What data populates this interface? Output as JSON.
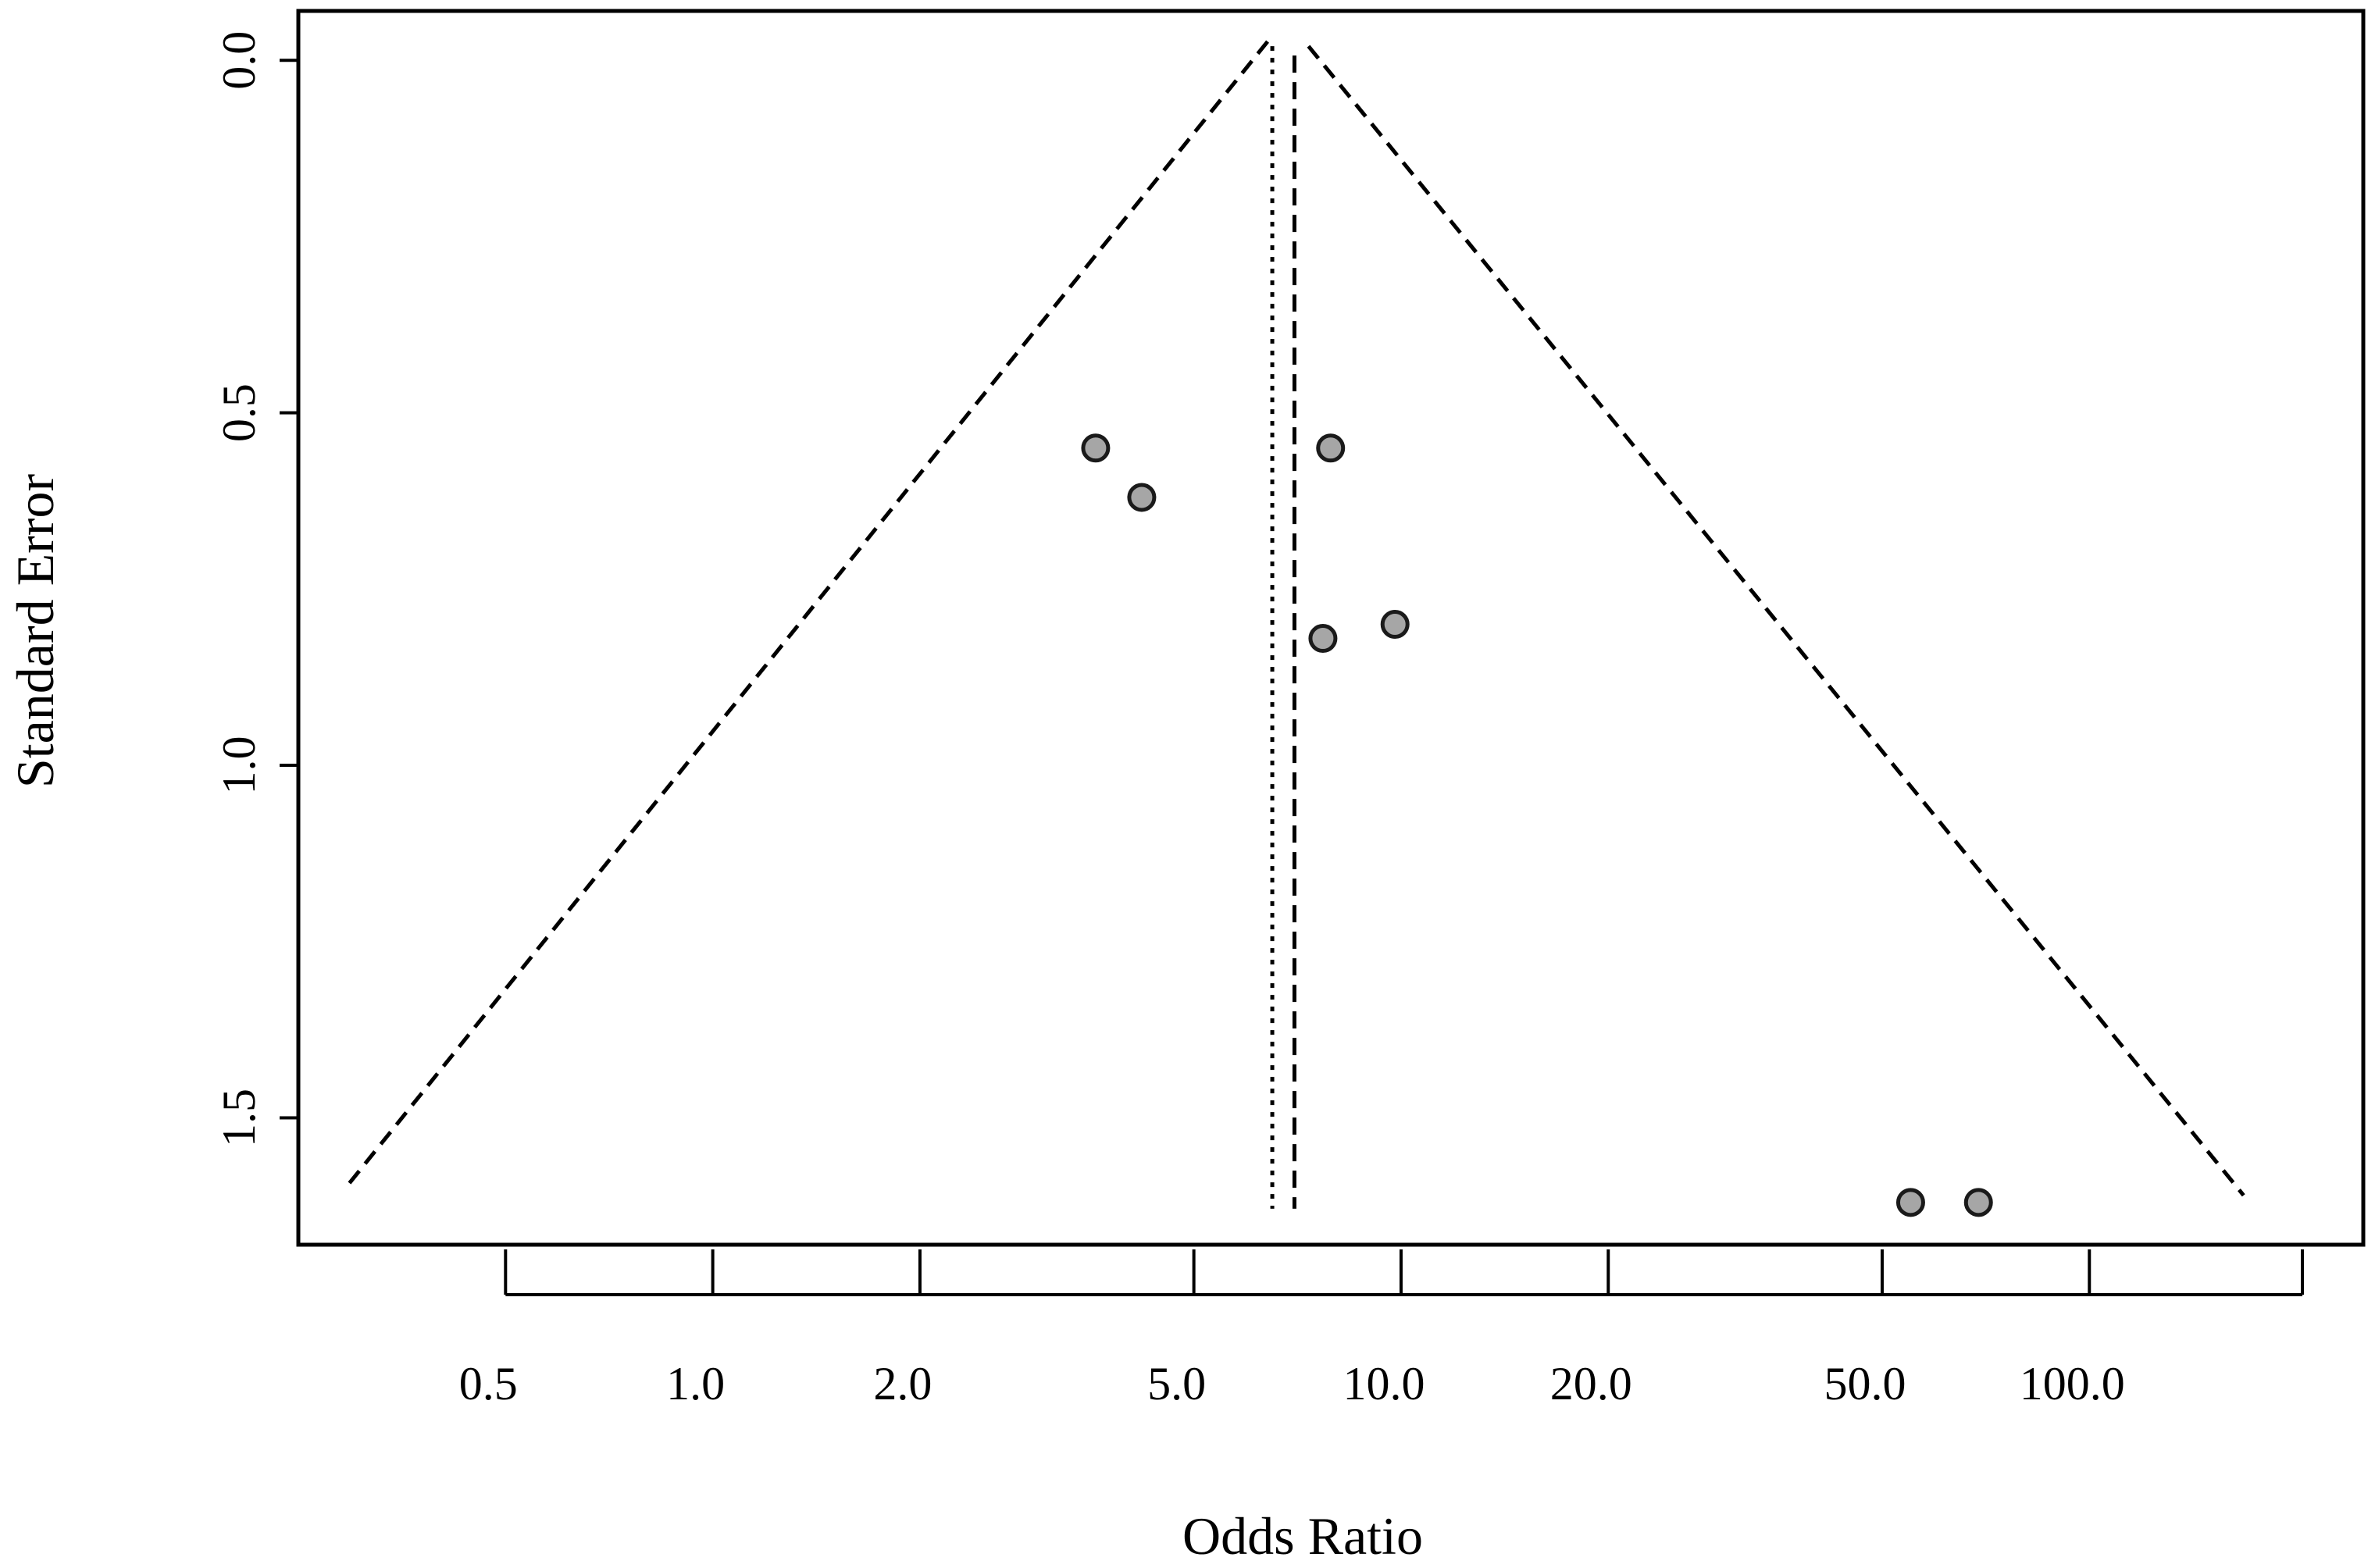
{
  "chart_data": {
    "type": "scatter",
    "title": "",
    "xlabel": "Odds Ratio",
    "ylabel": "Standard Error",
    "x_scale": "log",
    "x_ticks": [
      0.5,
      1.0,
      2.0,
      5.0,
      10.0,
      20.0,
      50.0,
      100.0
    ],
    "x_tick_labels": [
      "0.5",
      "1.0",
      "2.0",
      "5.0",
      "10.0",
      "20.0",
      "50.0",
      "100.0"
    ],
    "xlim": [
      0.25,
      250
    ],
    "y_ticks": [
      0.0,
      0.5,
      1.0,
      1.5
    ],
    "y_tick_labels": [
      "0.0",
      "0.5",
      "1.0",
      "1.5"
    ],
    "ylim": [
      1.68,
      -0.07
    ],
    "y_reversed": true,
    "grid": false,
    "points": [
      {
        "x": 3.6,
        "y": 0.55
      },
      {
        "x": 4.2,
        "y": 0.62
      },
      {
        "x": 7.9,
        "y": 0.55
      },
      {
        "x": 7.7,
        "y": 0.82
      },
      {
        "x": 9.8,
        "y": 0.8
      },
      {
        "x": 55.0,
        "y": 1.62
      },
      {
        "x": 69.0,
        "y": 1.62
      }
    ],
    "pooled_estimate_fixed": 6.5,
    "pooled_estimate_random": 7.0,
    "funnel_se_max": 1.62,
    "colors": {
      "point_fill": "#a6a6a6",
      "point_stroke": "#1a1a1a",
      "line": "#000000"
    }
  }
}
